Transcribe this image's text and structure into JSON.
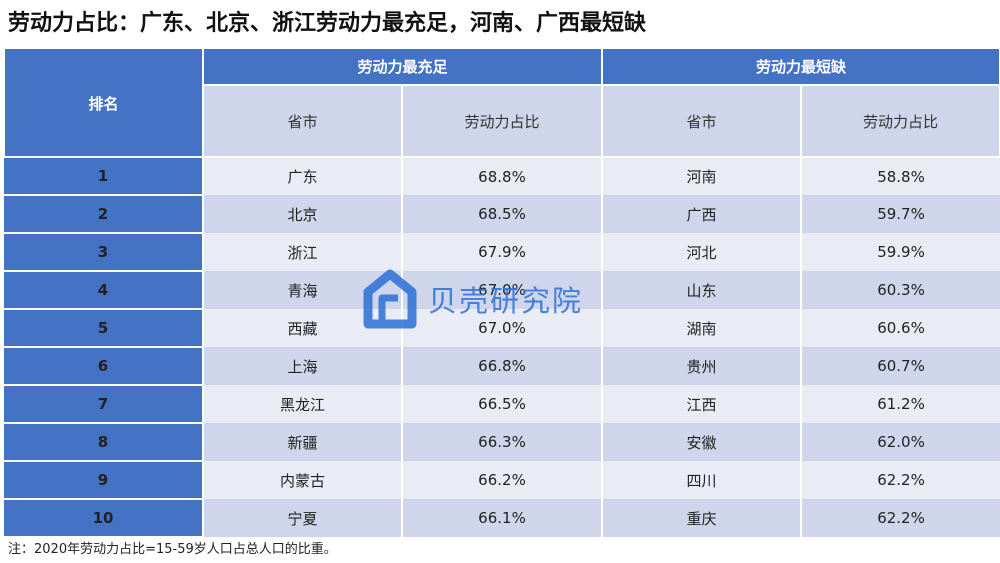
{
  "title": "劳动力占比：广东、北京、浙江劳动力最充足，河南、广西最短缺",
  "header": {
    "rank": "排名",
    "group_most": "劳动力最充足",
    "group_least": "劳动力最短缺",
    "province": "省市",
    "ratio": "劳动力占比"
  },
  "rows": [
    {
      "rank": "1",
      "most_province": "广东",
      "most_ratio": "68.8%",
      "least_province": "河南",
      "least_ratio": "58.8%"
    },
    {
      "rank": "2",
      "most_province": "北京",
      "most_ratio": "68.5%",
      "least_province": "广西",
      "least_ratio": "59.7%"
    },
    {
      "rank": "3",
      "most_province": "浙江",
      "most_ratio": "67.9%",
      "least_province": "河北",
      "least_ratio": "59.9%"
    },
    {
      "rank": "4",
      "most_province": "青海",
      "most_ratio": "67.0%",
      "least_province": "山东",
      "least_ratio": "60.3%"
    },
    {
      "rank": "5",
      "most_province": "西藏",
      "most_ratio": "67.0%",
      "least_province": "湖南",
      "least_ratio": "60.6%"
    },
    {
      "rank": "6",
      "most_province": "上海",
      "most_ratio": "66.8%",
      "least_province": "贵州",
      "least_ratio": "60.7%"
    },
    {
      "rank": "7",
      "most_province": "黑龙江",
      "most_ratio": "66.5%",
      "least_province": "江西",
      "least_ratio": "61.2%"
    },
    {
      "rank": "8",
      "most_province": "新疆",
      "most_ratio": "66.3%",
      "least_province": "安徽",
      "least_ratio": "62.0%"
    },
    {
      "rank": "9",
      "most_province": "内蒙古",
      "most_ratio": "66.2%",
      "least_province": "四川",
      "least_ratio": "62.2%"
    },
    {
      "rank": "10",
      "most_province": "宁夏",
      "most_ratio": "66.1%",
      "least_province": "重庆",
      "least_ratio": "62.2%"
    }
  ],
  "note": "注：2020年劳动力占比=15-59岁人口占总人口的比重。",
  "watermark": {
    "text": "贝壳研究院",
    "icon": "beike-logo-icon",
    "color": "#2b6fd6"
  }
}
